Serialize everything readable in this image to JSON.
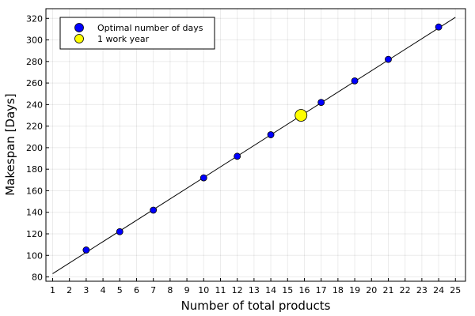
{
  "chart_data": {
    "type": "scatter",
    "title": "",
    "xlabel": "Number of total products",
    "ylabel": "Makespan [Days]",
    "xlim": [
      0.6,
      25.6
    ],
    "ylim": [
      76,
      329
    ],
    "x_ticks": [
      1,
      2,
      3,
      4,
      5,
      6,
      7,
      8,
      9,
      10,
      11,
      12,
      13,
      14,
      15,
      16,
      17,
      18,
      19,
      20,
      21,
      22,
      23,
      24,
      25
    ],
    "y_ticks": [
      80,
      100,
      120,
      140,
      160,
      180,
      200,
      220,
      240,
      260,
      280,
      300,
      320
    ],
    "grid": true,
    "legend_position": "top-left",
    "trend_line": {
      "x": [
        1,
        25
      ],
      "y": [
        83,
        321
      ]
    },
    "series": [
      {
        "name": "Optimal number of days",
        "color": "#0000ff",
        "marker": "circle",
        "x": [
          3,
          5,
          7,
          10,
          12,
          14,
          17,
          19,
          21,
          24
        ],
        "y": [
          105,
          122,
          142,
          172,
          192,
          212,
          242,
          262,
          282,
          312
        ]
      },
      {
        "name": "1 work year",
        "color": "#ffff00",
        "marker": "circle-large",
        "x": [
          15.8
        ],
        "y": [
          230
        ]
      }
    ]
  }
}
